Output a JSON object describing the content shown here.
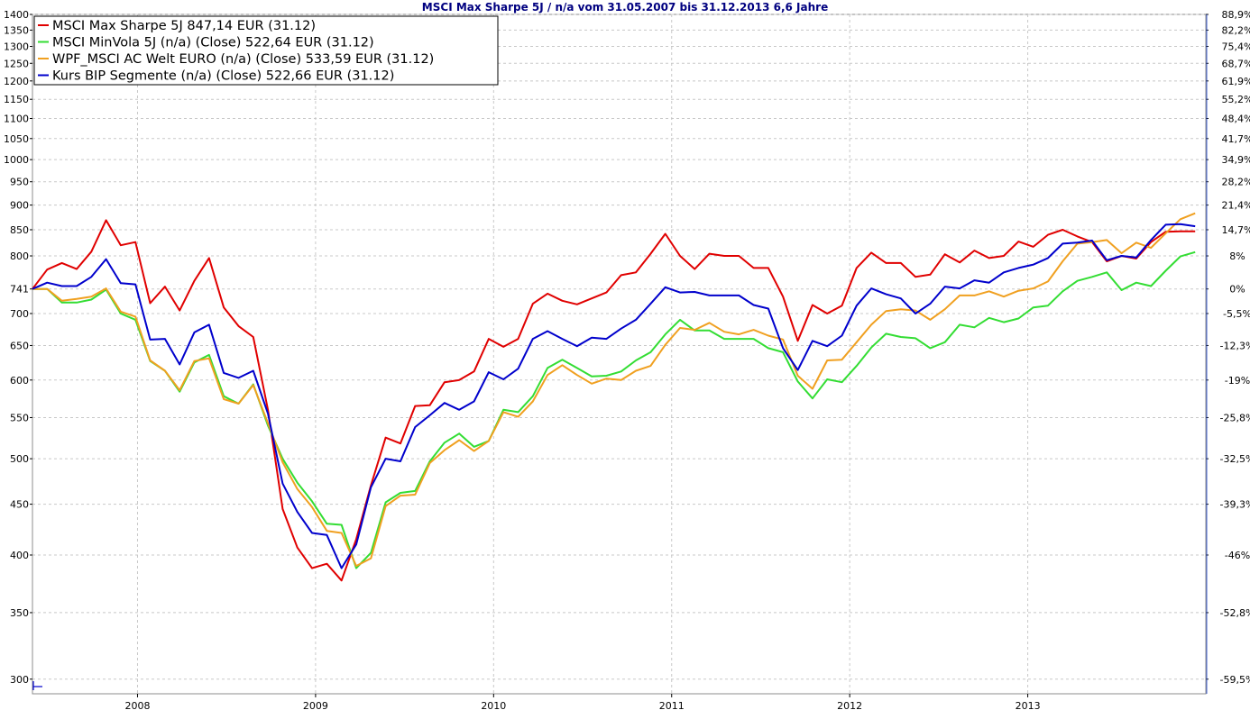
{
  "chart_data": {
    "type": "line",
    "title": "MSCI Max Sharpe 5J / n/a vom 31.05.2007 bis 31.12.2013 6,6 Jahre",
    "y_scale": "log",
    "ylim": [
      290,
      1400
    ],
    "base_value": 741,
    "y_ticks_left": [
      "1400",
      "1350",
      "1300",
      "1250",
      "1200",
      "1150",
      "1100",
      "1050",
      "1000",
      "950",
      "900",
      "850",
      "800",
      "741",
      "700",
      "650",
      "600",
      "550",
      "500",
      "450",
      "400",
      "350",
      "300"
    ],
    "y_ticks_right": [
      "88,9%",
      "82,2%",
      "75,4%",
      "68,7%",
      "61,9%",
      "55,2%",
      "48,4%",
      "41,7%",
      "34,9%",
      "28,2%",
      "21,4%",
      "14,7%",
      "8%",
      "0%",
      "-5,5%",
      "-12,3%",
      "-19%",
      "-25,8%",
      "-32,5%",
      "-39,3%",
      "-46%",
      "-52,8%",
      "-59,5%"
    ],
    "x_ticks": [
      {
        "label": "2008",
        "t": 2008.0
      },
      {
        "label": "2009",
        "t": 2009.0
      },
      {
        "label": "2010",
        "t": 2010.0
      },
      {
        "label": "2011",
        "t": 2011.0
      },
      {
        "label": "2012",
        "t": 2012.0
      },
      {
        "label": "2013",
        "t": 2013.0
      }
    ],
    "x_range": [
      2007.41,
      2014.0
    ],
    "grid": true,
    "legend_position": "top-left",
    "series": [
      {
        "name": "MSCI Max Sharpe 5J 847,14 EUR (31.12)",
        "color": "#e00000",
        "values": [
          741,
          775,
          787,
          776,
          808,
          869,
          820,
          826,
          717,
          745,
          705,
          755,
          796,
          710,
          680,
          663,
          560,
          445,
          407,
          388,
          392,
          377,
          415,
          470,
          525,
          518,
          565,
          566,
          597,
          600,
          612,
          660,
          648,
          660,
          716,
          733,
          721,
          715,
          725,
          735,
          765,
          770,
          804,
          842,
          800,
          776,
          804,
          800,
          800,
          778,
          778,
          728,
          657,
          714,
          700,
          713,
          778,
          806,
          787,
          787,
          762,
          766,
          803,
          788,
          810,
          796,
          800,
          827,
          817,
          840,
          850,
          837,
          826,
          790,
          800,
          795,
          826,
          846,
          847,
          847
        ]
      },
      {
        "name": "MSCI MinVola 5J (n/a) (Close) 522,64 EUR (31.12)",
        "color": "#33dd33",
        "values": [
          741,
          741,
          718,
          718,
          723,
          740,
          700,
          690,
          627,
          613,
          584,
          625,
          636,
          578,
          568,
          594,
          540,
          500,
          473,
          453,
          430,
          429,
          388,
          402,
          452,
          462,
          464,
          497,
          519,
          530,
          514,
          521,
          560,
          557,
          578,
          617,
          629,
          617,
          605,
          606,
          612,
          628,
          640,
          667,
          690,
          673,
          673,
          660,
          660,
          660,
          646,
          640,
          598,
          575,
          601,
          597,
          620,
          647,
          668,
          663,
          661,
          646,
          655,
          682,
          678,
          693,
          686,
          692,
          710,
          713,
          737,
          755,
          762,
          770,
          739,
          752,
          746,
          773,
          799,
          807
        ]
      },
      {
        "name": "WPF_MSCI AC Welt EURO (n/a) (Close) 533,59 EUR (31.12)",
        "color": "#f0a020",
        "values": [
          741,
          741,
          721,
          724,
          728,
          742,
          703,
          695,
          628,
          613,
          586,
          627,
          631,
          574,
          568,
          593,
          543,
          496,
          466,
          447,
          423,
          421,
          390,
          397,
          448,
          459,
          460,
          495,
          510,
          522,
          509,
          521,
          557,
          551,
          571,
          607,
          621,
          607,
          595,
          602,
          600,
          613,
          620,
          651,
          677,
          674,
          685,
          671,
          667,
          674,
          665,
          659,
          606,
          588,
          628,
          629,
          655,
          682,
          704,
          707,
          705,
          690,
          707,
          730,
          730,
          737,
          728,
          738,
          742,
          754,
          790,
          823,
          826,
          830,
          805,
          825,
          815,
          843,
          871,
          883
        ]
      },
      {
        "name": "Kurs BIP Segmente (n/a) (Close) 522,66 EUR (31.12)",
        "color": "#0000cc",
        "values": [
          741,
          752,
          746,
          746,
          762,
          794,
          751,
          749,
          659,
          660,
          622,
          670,
          682,
          610,
          603,
          613,
          555,
          472,
          442,
          421,
          419,
          388,
          410,
          468,
          500,
          497,
          538,
          553,
          569,
          560,
          571,
          611,
          601,
          616,
          660,
          672,
          660,
          649,
          662,
          660,
          676,
          690,
          716,
          744,
          735,
          736,
          730,
          730,
          730,
          714,
          708,
          646,
          614,
          657,
          649,
          665,
          713,
          742,
          732,
          725,
          700,
          716,
          745,
          742,
          756,
          752,
          770,
          778,
          784,
          796,
          823,
          825,
          829,
          792,
          800,
          797,
          830,
          860,
          861,
          857
        ]
      }
    ]
  }
}
